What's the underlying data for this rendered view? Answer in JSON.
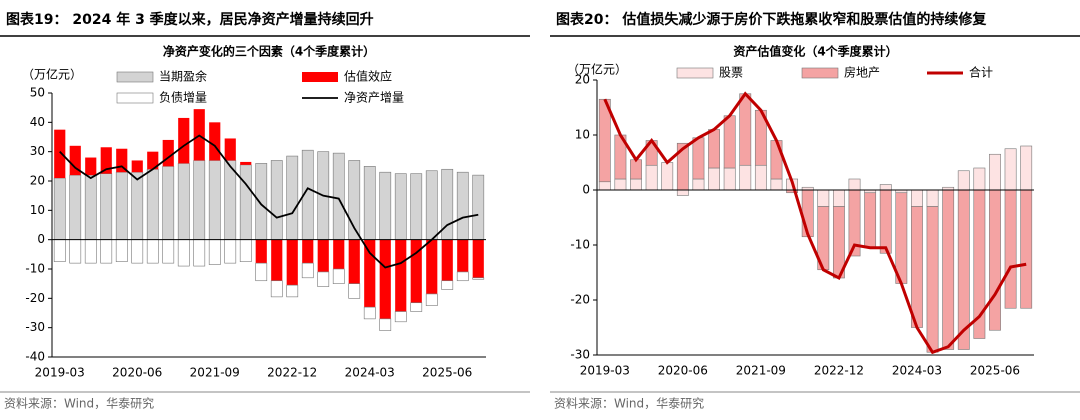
{
  "chart_data": [
    {
      "type": "bar",
      "figure_title": "图表19：  2024 年 3 季度以来，居民净资产增量持续回升",
      "title": "净资产变化的三个因素（4个季度累计）",
      "unit": "（万亿元）",
      "source": "资料来源：Wind，华泰研究",
      "categories": [
        "2019-03",
        null,
        null,
        null,
        null,
        "2020-06",
        null,
        null,
        null,
        null,
        "2021-09",
        null,
        null,
        null,
        null,
        "2022-12",
        null,
        null,
        null,
        null,
        "2024-03",
        null,
        null,
        null,
        null,
        "2025-06",
        null,
        null
      ],
      "ylim": [
        -40,
        50
      ],
      "yticks": [
        -40,
        -30,
        -20,
        -10,
        0,
        10,
        20,
        30,
        40,
        50
      ],
      "series": [
        {
          "name": "当期盈余",
          "color": "#d3d3d3",
          "values": [
            21,
            22,
            22,
            22.5,
            23,
            23,
            24,
            25,
            26,
            27,
            27,
            27,
            25.5,
            26,
            27,
            28.5,
            30.5,
            30,
            29.5,
            27,
            25,
            23,
            22.5,
            22.5,
            23.5,
            24,
            23,
            22
          ]
        },
        {
          "name": "估值效应",
          "color": "#ff0000",
          "values": [
            16.5,
            10,
            6,
            9,
            8,
            4,
            6,
            9,
            15.5,
            17.5,
            13,
            7.5,
            1,
            -8,
            -14,
            -15.5,
            -8,
            -11,
            -10,
            -15,
            -23,
            -27,
            -24.5,
            -21.5,
            -18.5,
            -14,
            -11,
            -13
          ]
        },
        {
          "name": "负债增量",
          "color": "#ffffff",
          "values": [
            -7.5,
            -8,
            -8,
            -8,
            -7.5,
            -8,
            -8,
            -8,
            -9,
            -9,
            -8.5,
            -8,
            -7.5,
            -6,
            -5.5,
            -4,
            -5,
            -5,
            -5,
            -5,
            -4,
            -4,
            -3.5,
            -3,
            -4,
            -3,
            -3,
            -0.5
          ]
        },
        {
          "name": "净资产增量",
          "color": "#000000",
          "type": "line",
          "values": [
            30,
            24.5,
            21,
            24,
            25,
            20.5,
            24,
            28,
            32,
            35.5,
            32,
            25,
            19,
            12,
            7.5,
            9,
            17.5,
            15,
            14,
            4,
            -4.5,
            -9.5,
            -8,
            -4.5,
            0,
            5,
            7.5,
            8.5
          ]
        }
      ]
    },
    {
      "type": "bar",
      "figure_title": "图表20：  估值损失减少源于房价下跌拖累收窄和股票估值的持续修复",
      "title": "资产估值变化（4个季度累计）",
      "unit": "（万亿元）",
      "source": "资料来源：Wind，华泰研究",
      "categories": [
        "2019-03",
        null,
        null,
        null,
        null,
        "2020-06",
        null,
        null,
        null,
        null,
        "2021-09",
        null,
        null,
        null,
        null,
        "2022-12",
        null,
        null,
        null,
        null,
        "2024-03",
        null,
        null,
        null,
        null,
        "2025-06",
        null,
        null
      ],
      "ylim": [
        -30,
        20
      ],
      "yticks": [
        -30,
        -20,
        -10,
        0,
        10,
        20
      ],
      "series": [
        {
          "name": "股票",
          "color": "#fde3e3",
          "values": [
            1.5,
            2,
            2,
            4.5,
            5,
            -1,
            2,
            4,
            4,
            4.5,
            4.5,
            2,
            2,
            0.5,
            -3,
            -3,
            2,
            -0.5,
            1,
            -0.5,
            -3,
            -3,
            0.5,
            3.5,
            4,
            6.5,
            7.5,
            8
          ]
        },
        {
          "name": "房地产",
          "color": "#f4a3a3",
          "values": [
            15,
            8,
            3.5,
            4.5,
            0,
            8.5,
            7.5,
            7,
            9.5,
            13,
            10,
            7,
            -0.5,
            -8.5,
            -11.5,
            -13,
            -12,
            -10,
            -11.5,
            -16.5,
            -22,
            -26.5,
            -29,
            -29,
            -27,
            -25.5,
            -21.5,
            -21.5
          ]
        },
        {
          "name": "合计",
          "color": "#c00000",
          "type": "line",
          "values": [
            16.5,
            10,
            5.5,
            9,
            5,
            7.5,
            9.5,
            11,
            13.5,
            17.5,
            14.5,
            9,
            1.5,
            -8,
            -14.5,
            -16,
            -10,
            -10.5,
            -10.5,
            -17,
            -25,
            -29.5,
            -28.5,
            -25.5,
            -23,
            -19,
            -14,
            -13.5
          ]
        }
      ]
    }
  ]
}
